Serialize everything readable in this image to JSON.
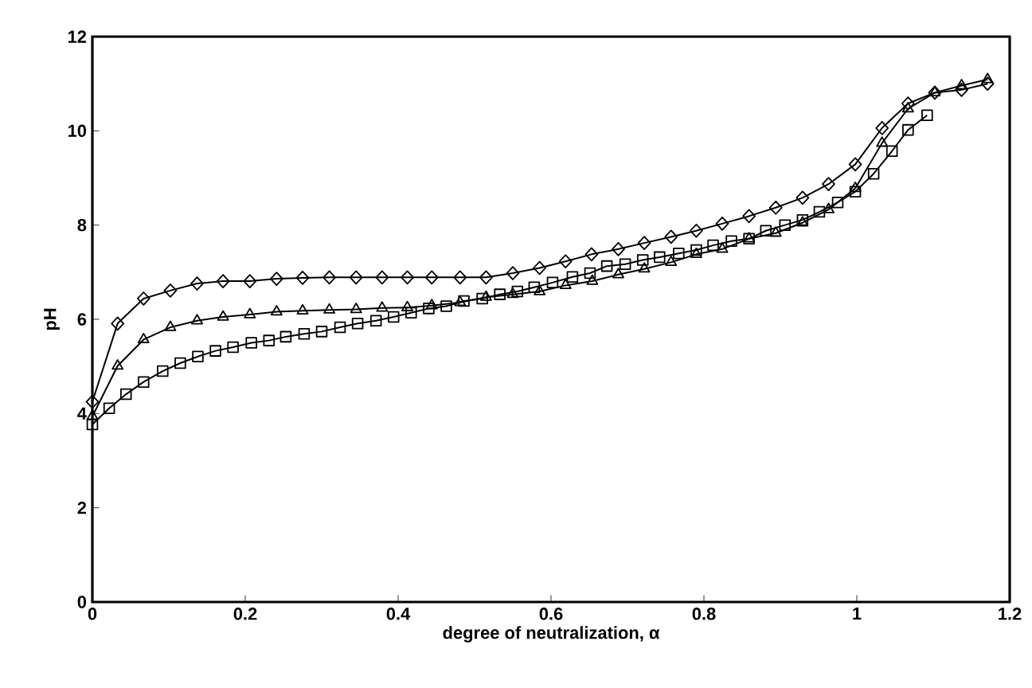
{
  "chart_data": {
    "type": "line",
    "xlabel": "degree of neutralization, α",
    "ylabel": "pH",
    "xlim": [
      0,
      1.2
    ],
    "ylim": [
      0,
      12
    ],
    "xticks": [
      0,
      0.2,
      0.4,
      0.6,
      0.8,
      1,
      1.2
    ],
    "yticks": [
      0,
      2,
      4,
      6,
      8,
      10,
      12
    ],
    "grid": false,
    "line_style": "solid",
    "series": [
      {
        "color": "#000000",
        "marker": "diamond",
        "x": [
          0,
          0.033,
          0.067,
          0.102,
          0.137,
          0.171,
          0.206,
          0.241,
          0.275,
          0.31,
          0.345,
          0.379,
          0.412,
          0.444,
          0.481,
          0.515,
          0.55,
          0.585,
          0.619,
          0.653,
          0.688,
          0.722,
          0.757,
          0.79,
          0.824,
          0.859,
          0.894,
          0.929,
          0.963,
          0.998,
          1.033,
          1.067,
          1.102,
          1.137,
          1.171
        ],
        "values": [
          4.25,
          5.91,
          6.44,
          6.61,
          6.76,
          6.81,
          6.81,
          6.86,
          6.88,
          6.89,
          6.89,
          6.89,
          6.89,
          6.89,
          6.89,
          6.89,
          6.98,
          7.09,
          7.23,
          7.38,
          7.49,
          7.62,
          7.75,
          7.88,
          8.03,
          8.19,
          8.37,
          8.58,
          8.87,
          9.29,
          10.06,
          10.58,
          10.81,
          10.87,
          11.0
        ]
      },
      {
        "color": "#000000",
        "marker": "triangle",
        "x": [
          0,
          0.033,
          0.067,
          0.102,
          0.137,
          0.171,
          0.206,
          0.241,
          0.275,
          0.31,
          0.345,
          0.379,
          0.412,
          0.444,
          0.481,
          0.515,
          0.55,
          0.585,
          0.619,
          0.654,
          0.688,
          0.722,
          0.757,
          0.79,
          0.824,
          0.859,
          0.894,
          0.929,
          0.963,
          0.998,
          1.033,
          1.067,
          1.102,
          1.137,
          1.171
        ],
        "values": [
          3.94,
          5.01,
          5.57,
          5.83,
          5.97,
          6.05,
          6.1,
          6.16,
          6.18,
          6.2,
          6.21,
          6.24,
          6.25,
          6.29,
          6.36,
          6.47,
          6.53,
          6.59,
          6.72,
          6.81,
          6.95,
          7.07,
          7.21,
          7.38,
          7.49,
          7.71,
          7.83,
          8.05,
          8.33,
          8.78,
          9.74,
          10.47,
          10.81,
          10.96,
          11.09
        ]
      },
      {
        "color": "#000000",
        "marker": "square",
        "x": [
          0,
          0.022,
          0.044,
          0.067,
          0.092,
          0.115,
          0.138,
          0.161,
          0.184,
          0.208,
          0.231,
          0.253,
          0.277,
          0.3,
          0.324,
          0.347,
          0.371,
          0.394,
          0.417,
          0.44,
          0.463,
          0.486,
          0.51,
          0.533,
          0.556,
          0.578,
          0.602,
          0.628,
          0.651,
          0.673,
          0.697,
          0.72,
          0.742,
          0.767,
          0.79,
          0.812,
          0.836,
          0.859,
          0.881,
          0.906,
          0.929,
          0.951,
          0.975,
          0.998,
          1.022,
          1.046,
          1.067,
          1.092
        ],
        "values": [
          3.77,
          4.11,
          4.41,
          4.67,
          4.9,
          5.07,
          5.21,
          5.33,
          5.41,
          5.5,
          5.55,
          5.63,
          5.69,
          5.74,
          5.83,
          5.91,
          5.97,
          6.05,
          6.14,
          6.23,
          6.28,
          6.39,
          6.44,
          6.53,
          6.59,
          6.68,
          6.78,
          6.9,
          6.98,
          7.13,
          7.17,
          7.26,
          7.32,
          7.4,
          7.47,
          7.57,
          7.66,
          7.71,
          7.88,
          8.0,
          8.11,
          8.28,
          8.48,
          8.71,
          9.09,
          9.57,
          10.02,
          10.33
        ]
      }
    ]
  }
}
